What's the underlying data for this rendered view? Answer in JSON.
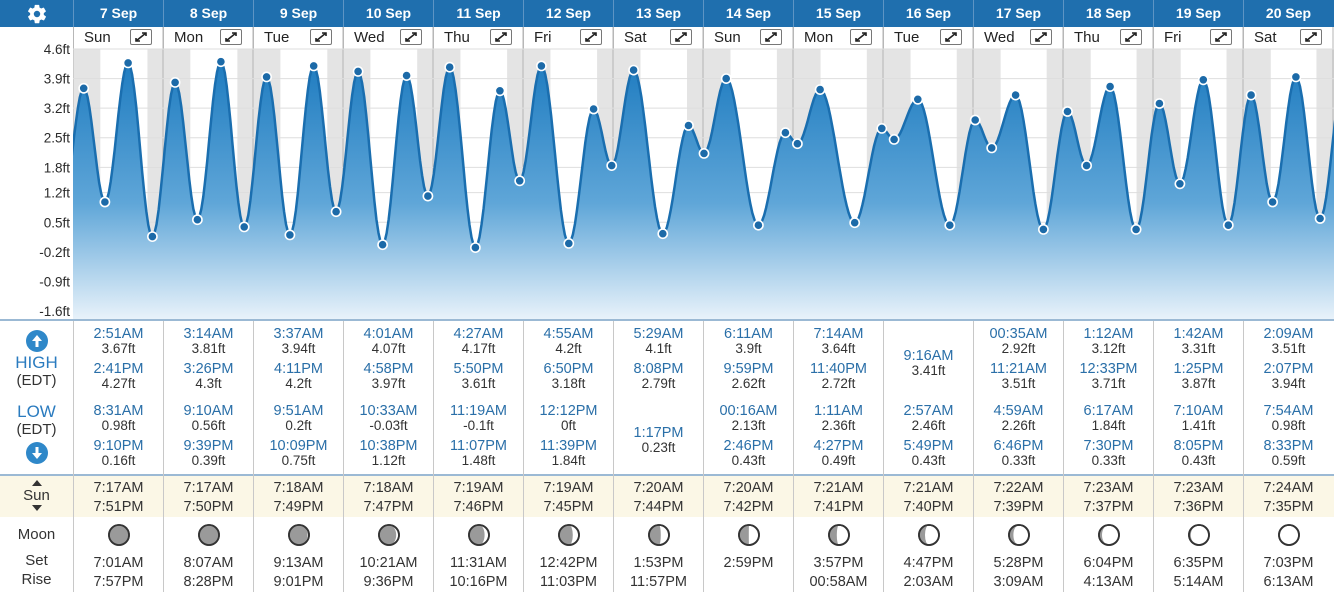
{
  "header": {
    "dates": [
      "7 Sep",
      "8 Sep",
      "9 Sep",
      "10 Sep",
      "11 Sep",
      "12 Sep",
      "13 Sep",
      "14 Sep",
      "15 Sep",
      "16 Sep",
      "17 Sep",
      "18 Sep",
      "19 Sep",
      "20 Sep"
    ],
    "days": [
      "Sun",
      "Mon",
      "Tue",
      "Wed",
      "Thu",
      "Fri",
      "Sat",
      "Sun",
      "Mon",
      "Tue",
      "Wed",
      "Thu",
      "Fri",
      "Sat"
    ],
    "settings_icon": "gear-icon",
    "expand_icon": "expand-arrows-icon",
    "colors": {
      "header_bg": "#1f6fae",
      "tide_fill": "#2f88c9",
      "night_band": "#e4e4e4"
    }
  },
  "chart_data": {
    "type": "area",
    "xlabel": "",
    "ylabel": "",
    "y_unit": "ft",
    "y_tick_labels": [
      "4.6ft",
      "3.9ft",
      "3.2ft",
      "2.5ft",
      "1.8ft",
      "1.2ft",
      "0.5ft",
      "-0.2ft",
      "-0.9ft",
      "-1.6ft"
    ],
    "y_ticks": [
      4.6,
      3.9,
      3.2,
      2.5,
      1.8,
      1.2,
      0.5,
      -0.2,
      -0.9,
      -1.6
    ],
    "ylim": [
      -1.6,
      4.6
    ],
    "x_range": [
      "2025-09-07T00:00",
      "2025-09-21T00:00"
    ],
    "series": [
      {
        "points": [
          [
            "2025-09-07T02:51",
            3.67
          ],
          [
            "2025-09-07T08:31",
            0.98
          ],
          [
            "2025-09-07T14:41",
            4.27
          ],
          [
            "2025-09-07T21:10",
            0.16
          ],
          [
            "2025-09-08T03:14",
            3.81
          ],
          [
            "2025-09-08T09:10",
            0.56
          ],
          [
            "2025-09-08T15:26",
            4.3
          ],
          [
            "2025-09-08T21:39",
            0.39
          ],
          [
            "2025-09-09T03:37",
            3.94
          ],
          [
            "2025-09-09T09:51",
            0.2
          ],
          [
            "2025-09-09T16:11",
            4.2
          ],
          [
            "2025-09-09T22:09",
            0.75
          ],
          [
            "2025-09-10T04:01",
            4.07
          ],
          [
            "2025-09-10T10:33",
            -0.03
          ],
          [
            "2025-09-10T16:58",
            3.97
          ],
          [
            "2025-09-10T22:38",
            1.12
          ],
          [
            "2025-09-11T04:27",
            4.17
          ],
          [
            "2025-09-11T11:19",
            -0.1
          ],
          [
            "2025-09-11T17:50",
            3.61
          ],
          [
            "2025-09-11T23:07",
            1.48
          ],
          [
            "2025-09-12T04:55",
            4.2
          ],
          [
            "2025-09-12T12:12",
            0
          ],
          [
            "2025-09-12T18:50",
            3.18
          ],
          [
            "2025-09-12T23:39",
            1.84
          ],
          [
            "2025-09-13T05:29",
            4.1
          ],
          [
            "2025-09-13T13:17",
            0.23
          ],
          [
            "2025-09-13T20:08",
            2.79
          ],
          [
            "2025-09-14T00:16",
            2.13
          ],
          [
            "2025-09-14T06:11",
            3.9
          ],
          [
            "2025-09-14T14:46",
            0.43
          ],
          [
            "2025-09-14T21:59",
            2.62
          ],
          [
            "2025-09-15T01:11",
            2.36
          ],
          [
            "2025-09-15T07:14",
            3.64
          ],
          [
            "2025-09-15T16:27",
            0.49
          ],
          [
            "2025-09-15T23:40",
            2.72
          ],
          [
            "2025-09-16T02:57",
            2.46
          ],
          [
            "2025-09-16T09:16",
            3.41
          ],
          [
            "2025-09-16T17:49",
            0.43
          ],
          [
            "2025-09-17T00:35",
            2.92
          ],
          [
            "2025-09-17T04:59",
            2.26
          ],
          [
            "2025-09-17T11:21",
            3.51
          ],
          [
            "2025-09-17T18:46",
            0.33
          ],
          [
            "2025-09-18T01:12",
            3.12
          ],
          [
            "2025-09-18T06:17",
            1.84
          ],
          [
            "2025-09-18T12:33",
            3.71
          ],
          [
            "2025-09-18T19:30",
            0.33
          ],
          [
            "2025-09-19T01:42",
            3.31
          ],
          [
            "2025-09-19T07:10",
            1.41
          ],
          [
            "2025-09-19T13:25",
            3.87
          ],
          [
            "2025-09-19T20:05",
            0.43
          ],
          [
            "2025-09-20T02:09",
            3.51
          ],
          [
            "2025-09-20T07:54",
            0.98
          ],
          [
            "2025-09-20T14:07",
            3.94
          ],
          [
            "2025-09-20T20:33",
            0.59
          ]
        ]
      }
    ],
    "grid": true,
    "legend": "none"
  },
  "table": {
    "high_label": "HIGH",
    "low_label": "LOW",
    "tz_label": "(EDT)",
    "sun_label": "Sun",
    "moon_label": "Moon",
    "set_label": "Set",
    "rise_label": "Rise",
    "high_icon": "arrow-up-icon",
    "low_icon": "arrow-down-icon",
    "highs": [
      [
        [
          "2:51AM",
          "3.67ft"
        ],
        [
          "2:41PM",
          "4.27ft"
        ]
      ],
      [
        [
          "3:14AM",
          "3.81ft"
        ],
        [
          "3:26PM",
          "4.3ft"
        ]
      ],
      [
        [
          "3:37AM",
          "3.94ft"
        ],
        [
          "4:11PM",
          "4.2ft"
        ]
      ],
      [
        [
          "4:01AM",
          "4.07ft"
        ],
        [
          "4:58PM",
          "3.97ft"
        ]
      ],
      [
        [
          "4:27AM",
          "4.17ft"
        ],
        [
          "5:50PM",
          "3.61ft"
        ]
      ],
      [
        [
          "4:55AM",
          "4.2ft"
        ],
        [
          "6:50PM",
          "3.18ft"
        ]
      ],
      [
        [
          "5:29AM",
          "4.1ft"
        ],
        [
          "8:08PM",
          "2.79ft"
        ]
      ],
      [
        [
          "6:11AM",
          "3.9ft"
        ],
        [
          "9:59PM",
          "2.62ft"
        ]
      ],
      [
        [
          "7:14AM",
          "3.64ft"
        ],
        [
          "11:40PM",
          "2.72ft"
        ]
      ],
      [
        [
          "9:16AM",
          "3.41ft"
        ]
      ],
      [
        [
          "00:35AM",
          "2.92ft"
        ],
        [
          "11:21AM",
          "3.51ft"
        ]
      ],
      [
        [
          "1:12AM",
          "3.12ft"
        ],
        [
          "12:33PM",
          "3.71ft"
        ]
      ],
      [
        [
          "1:42AM",
          "3.31ft"
        ],
        [
          "1:25PM",
          "3.87ft"
        ]
      ],
      [
        [
          "2:09AM",
          "3.51ft"
        ],
        [
          "2:07PM",
          "3.94ft"
        ]
      ]
    ],
    "lows": [
      [
        [
          "8:31AM",
          "0.98ft"
        ],
        [
          "9:10PM",
          "0.16ft"
        ]
      ],
      [
        [
          "9:10AM",
          "0.56ft"
        ],
        [
          "9:39PM",
          "0.39ft"
        ]
      ],
      [
        [
          "9:51AM",
          "0.2ft"
        ],
        [
          "10:09PM",
          "0.75ft"
        ]
      ],
      [
        [
          "10:33AM",
          "-0.03ft"
        ],
        [
          "10:38PM",
          "1.12ft"
        ]
      ],
      [
        [
          "11:19AM",
          "-0.1ft"
        ],
        [
          "11:07PM",
          "1.48ft"
        ]
      ],
      [
        [
          "12:12PM",
          "0ft"
        ],
        [
          "11:39PM",
          "1.84ft"
        ]
      ],
      [
        [
          "1:17PM",
          "0.23ft"
        ]
      ],
      [
        [
          "00:16AM",
          "2.13ft"
        ],
        [
          "2:46PM",
          "0.43ft"
        ]
      ],
      [
        [
          "1:11AM",
          "2.36ft"
        ],
        [
          "4:27PM",
          "0.49ft"
        ]
      ],
      [
        [
          "2:57AM",
          "2.46ft"
        ],
        [
          "5:49PM",
          "0.43ft"
        ]
      ],
      [
        [
          "4:59AM",
          "2.26ft"
        ],
        [
          "6:46PM",
          "0.33ft"
        ]
      ],
      [
        [
          "6:17AM",
          "1.84ft"
        ],
        [
          "7:30PM",
          "0.33ft"
        ]
      ],
      [
        [
          "7:10AM",
          "1.41ft"
        ],
        [
          "8:05PM",
          "0.43ft"
        ]
      ],
      [
        [
          "7:54AM",
          "0.98ft"
        ],
        [
          "8:33PM",
          "0.59ft"
        ]
      ]
    ],
    "sun": [
      [
        "7:17AM",
        "7:51PM"
      ],
      [
        "7:17AM",
        "7:50PM"
      ],
      [
        "7:18AM",
        "7:49PM"
      ],
      [
        "7:18AM",
        "7:47PM"
      ],
      [
        "7:19AM",
        "7:46PM"
      ],
      [
        "7:19AM",
        "7:45PM"
      ],
      [
        "7:20AM",
        "7:44PM"
      ],
      [
        "7:20AM",
        "7:42PM"
      ],
      [
        "7:21AM",
        "7:41PM"
      ],
      [
        "7:21AM",
        "7:40PM"
      ],
      [
        "7:22AM",
        "7:39PM"
      ],
      [
        "7:23AM",
        "7:37PM"
      ],
      [
        "7:23AM",
        "7:36PM"
      ],
      [
        "7:24AM",
        "7:35PM"
      ]
    ],
    "moon_illumination": [
      0.99,
      0.97,
      0.93,
      0.86,
      0.78,
      0.69,
      0.59,
      0.49,
      0.39,
      0.3,
      0.22,
      0.15,
      0.09,
      0.05
    ],
    "moon_set_rise": [
      [
        "7:01AM",
        "7:57PM"
      ],
      [
        "8:07AM",
        "8:28PM"
      ],
      [
        "9:13AM",
        "9:01PM"
      ],
      [
        "10:21AM",
        "9:36PM"
      ],
      [
        "11:31AM",
        "10:16PM"
      ],
      [
        "12:42PM",
        "11:03PM"
      ],
      [
        "1:53PM",
        "11:57PM"
      ],
      [
        "2:59PM",
        ""
      ],
      [
        "3:57PM",
        "00:58AM"
      ],
      [
        "4:47PM",
        "2:03AM"
      ],
      [
        "5:28PM",
        "3:09AM"
      ],
      [
        "6:04PM",
        "4:13AM"
      ],
      [
        "6:35PM",
        "5:14AM"
      ],
      [
        "7:03PM",
        "6:13AM"
      ]
    ]
  }
}
